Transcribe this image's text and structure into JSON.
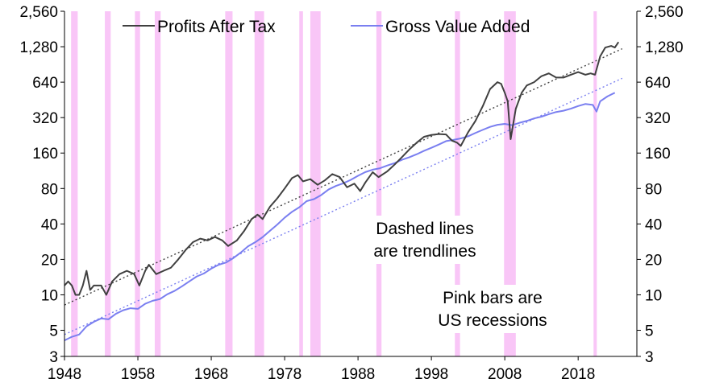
{
  "chart_data": {
    "type": "line",
    "yscale": "log",
    "ylim": [
      3,
      2560
    ],
    "xlim": [
      1948,
      2026
    ],
    "yticks": [
      3,
      5,
      10,
      20,
      40,
      80,
      160,
      320,
      640,
      1280,
      2560
    ],
    "ytick_labels": [
      "3",
      "5",
      "10",
      "20",
      "40",
      "80",
      "160",
      "320",
      "640",
      "1,280",
      "2,560"
    ],
    "xticks": [
      1948,
      1958,
      1968,
      1978,
      1988,
      1998,
      2008,
      2018
    ],
    "xtick_labels": [
      "1948",
      "1958",
      "1968",
      "1978",
      "1988",
      "1998",
      "2008",
      "2018"
    ],
    "legend": [
      "Profits After Tax",
      "Gross Value Added"
    ],
    "series": [
      {
        "name": "Profits After Tax",
        "color": "#404040",
        "x": [
          1948,
          1948.5,
          1949,
          1949.5,
          1950,
          1950.5,
          1951,
          1951.5,
          1952,
          1953,
          1953.7,
          1954.5,
          1955.5,
          1956.5,
          1957.5,
          1958.2,
          1959,
          1959.5,
          1960.5,
          1961.5,
          1962.5,
          1963.5,
          1964.5,
          1965.5,
          1966.5,
          1967.5,
          1968.5,
          1969.5,
          1970.3,
          1971.5,
          1972.5,
          1973.5,
          1974.3,
          1975,
          1976,
          1977,
          1978,
          1979,
          1979.8,
          1980.5,
          1981.5,
          1982.5,
          1983.5,
          1984.5,
          1985.5,
          1986.5,
          1987.5,
          1988.3,
          1989,
          1990,
          1990.8,
          1992,
          1993,
          1994,
          1995,
          1996,
          1997,
          1998,
          1999,
          2000,
          2000.8,
          2001.5,
          2002,
          2003,
          2004,
          2005,
          2006,
          2007,
          2007.5,
          2008,
          2008.4,
          2008.8,
          2009.5,
          2010.3,
          2011,
          2012,
          2013,
          2014,
          2015,
          2016,
          2017,
          2018,
          2019,
          2019.7,
          2020.3,
          2021,
          2021.7,
          2022.5,
          2023,
          2023.5
        ],
        "values": [
          12,
          13,
          12,
          10,
          10,
          12,
          16,
          11,
          12,
          12,
          10,
          13,
          15,
          16,
          15,
          12,
          16,
          18,
          15,
          16,
          17,
          20,
          24,
          28,
          30,
          29,
          31,
          29,
          26,
          29,
          35,
          44,
          48,
          44,
          56,
          66,
          80,
          98,
          104,
          92,
          96,
          86,
          94,
          106,
          100,
          82,
          88,
          76,
          90,
          110,
          100,
          112,
          128,
          148,
          172,
          196,
          220,
          228,
          232,
          230,
          204,
          196,
          184,
          240,
          300,
          400,
          560,
          640,
          620,
          520,
          440,
          210,
          380,
          520,
          600,
          640,
          720,
          760,
          700,
          700,
          740,
          780,
          740,
          760,
          740,
          1060,
          1260,
          1300,
          1260,
          1400
        ]
      },
      {
        "name": "Gross Value Added",
        "color": "#7a7ff0",
        "x": [
          1948,
          1949,
          1950,
          1951,
          1952,
          1953,
          1954,
          1955,
          1956,
          1957,
          1958,
          1959,
          1960,
          1961,
          1962,
          1963,
          1964,
          1965,
          1966,
          1967,
          1968,
          1969,
          1970,
          1971,
          1972,
          1973,
          1974,
          1975,
          1976,
          1977,
          1978,
          1979,
          1980,
          1981,
          1982,
          1983,
          1984,
          1985,
          1986,
          1987,
          1988,
          1989,
          1990,
          1991,
          1992,
          1993,
          1994,
          1995,
          1996,
          1997,
          1998,
          1999,
          2000,
          2001,
          2002,
          2003,
          2004,
          2005,
          2006,
          2007,
          2008,
          2009,
          2010,
          2011,
          2012,
          2013,
          2014,
          2015,
          2016,
          2017,
          2018,
          2019,
          2020,
          2020.5,
          2021,
          2022,
          2023
        ],
        "values": [
          4.1,
          4.4,
          4.6,
          5.4,
          5.9,
          6.3,
          6.2,
          6.9,
          7.4,
          7.7,
          7.6,
          8.4,
          8.9,
          9.2,
          10.1,
          10.8,
          11.8,
          13.0,
          14.3,
          15.2,
          16.7,
          18.0,
          18.8,
          20.5,
          22.8,
          25.8,
          28.0,
          30.9,
          35.0,
          39.5,
          45.2,
          50.7,
          55.4,
          62.5,
          65.0,
          70.5,
          78.6,
          84.2,
          88.6,
          94.6,
          102.6,
          110.3,
          115.6,
          118.9,
          125.4,
          131.6,
          140.3,
          147.4,
          156.3,
          167.2,
          177.4,
          189.0,
          202.0,
          207.0,
          213.0,
          222.0,
          237.0,
          252.0,
          267.0,
          278.0,
          283.0,
          276.0,
          289.0,
          300.0,
          315.0,
          326.0,
          342.0,
          357.0,
          366.0,
          381.0,
          401.0,
          418.0,
          410.0,
          360.0,
          440.0,
          485.0,
          520.0
        ]
      }
    ],
    "trendlines": [
      {
        "name": "Profits trend",
        "color": "#404040",
        "x": [
          1948,
          2024
        ],
        "values": [
          8.2,
          1230
        ]
      },
      {
        "name": "GVA trend",
        "color": "#7a7ff0",
        "x": [
          1948,
          2024
        ],
        "values": [
          4.6,
          690
        ]
      }
    ],
    "recessions": [
      [
        1948.9,
        1949.8
      ],
      [
        1953.5,
        1954.3
      ],
      [
        1957.6,
        1958.3
      ],
      [
        1960.3,
        1961.1
      ],
      [
        1969.9,
        1970.9
      ],
      [
        1973.9,
        1975.2
      ],
      [
        1980.0,
        1980.5
      ],
      [
        1981.5,
        1982.9
      ],
      [
        1990.5,
        1991.2
      ],
      [
        2001.2,
        2001.9
      ],
      [
        2007.9,
        2009.5
      ],
      [
        2020.1,
        2020.4
      ]
    ],
    "recession_color": "#f9c6f7",
    "annotations": [
      {
        "lines": [
          "Dashed lines",
          "are trendlines"
        ]
      },
      {
        "lines": [
          "Pink bars are",
          "US recessions"
        ]
      }
    ]
  }
}
